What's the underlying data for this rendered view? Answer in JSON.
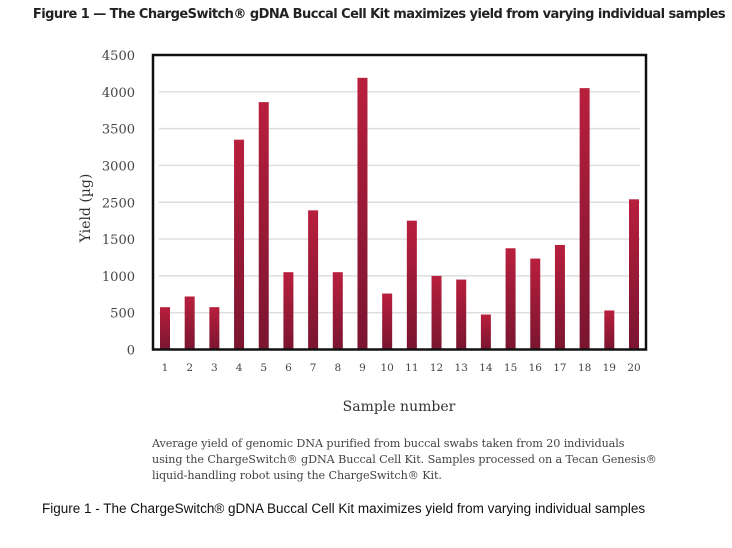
{
  "figure_title": "Figure 1 — The ChargeSwitch® gDNA Buccal Cell Kit maximizes yield from varying individual samples",
  "chart_data": {
    "type": "bar",
    "title": "Figure 1 — The ChargeSwitch® gDNA Buccal Cell Kit maximizes yield from varying individual samples",
    "xlabel": "Sample number",
    "ylabel": "Yield (µg)",
    "categories": [
      "1",
      "2",
      "3",
      "4",
      "5",
      "6",
      "7",
      "8",
      "9",
      "10",
      "11",
      "12",
      "13",
      "14",
      "15",
      "16",
      "17",
      "18",
      "19",
      "20"
    ],
    "values": [
      575,
      720,
      575,
      3350,
      3860,
      1050,
      2280,
      1050,
      4190,
      760,
      2000,
      1000,
      950,
      475,
      1375,
      1235,
      1420,
      4050,
      530,
      2540
    ],
    "y_tick_labels": [
      "0",
      "500",
      "1000",
      "1500",
      "2500",
      "3000",
      "3500",
      "4000",
      "4500"
    ],
    "ylim": [
      0,
      4500
    ],
    "grid": true,
    "legend": "none",
    "bar_color": "#b81f3d",
    "bar_color_dark": "#7a1530",
    "grid_color": "#dddddd",
    "frame_color": "#111111"
  },
  "caption": {
    "lines": [
      "Average yield of genomic DNA purified from buccal swabs taken from 20 individuals",
      "using the ChargeSwitch® gDNA Buccal Cell Kit. Samples processed on a Tecan Genesis®",
      "liquid-handling robot using the ChargeSwitch® Kit."
    ]
  },
  "page_caption": "Figure 1 - The ChargeSwitch® gDNA Buccal Cell Kit maximizes yield from varying individual samples"
}
